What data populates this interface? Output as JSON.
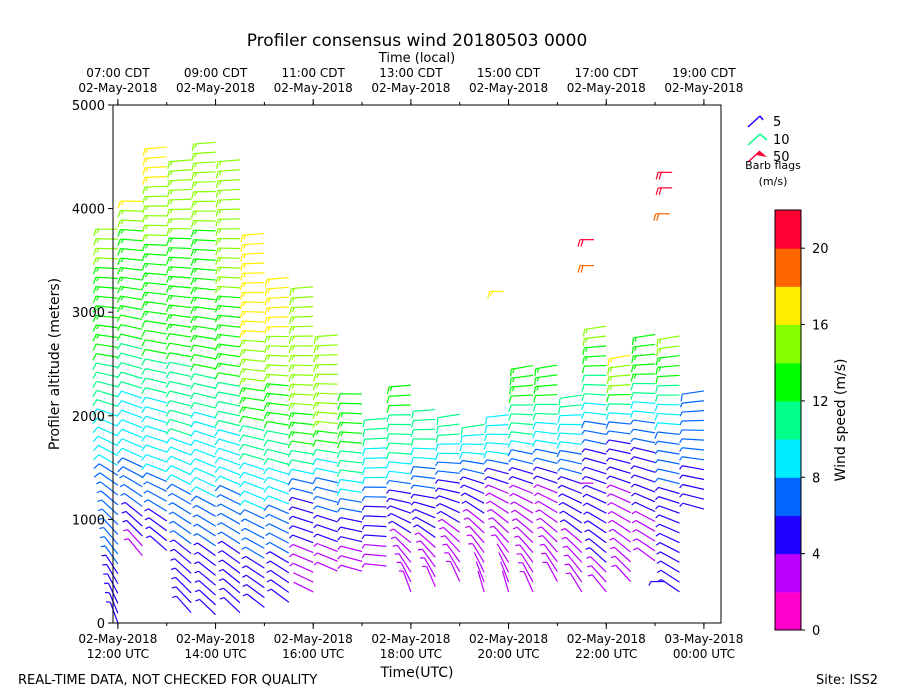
{
  "page": {
    "footer_left": "REAL-TIME DATA, NOT CHECKED FOR QUALITY",
    "footer_right": "Site: ISS2"
  },
  "chart_data": {
    "type": "scatter",
    "title": "Profiler consensus wind 20180503 0000",
    "xlabel": "Time(UTC)",
    "ylabel": "Profiler altitude (meters)",
    "top_axis_label": "Time (local)",
    "ylim": [
      0,
      5000
    ],
    "y_ticks": [
      0,
      1000,
      2000,
      3000,
      4000,
      5000
    ],
    "xlim_hours_utc": [
      11.9,
      24.35
    ],
    "bottom_ticks": [
      {
        "x": 12,
        "line1": "02-May-2018",
        "line2": "12:00 UTC"
      },
      {
        "x": 14,
        "line1": "02-May-2018",
        "line2": "14:00 UTC"
      },
      {
        "x": 16,
        "line1": "02-May-2018",
        "line2": "16:00 UTC"
      },
      {
        "x": 18,
        "line1": "02-May-2018",
        "line2": "18:00 UTC"
      },
      {
        "x": 20,
        "line1": "02-May-2018",
        "line2": "20:00 UTC"
      },
      {
        "x": 22,
        "line1": "02-May-2018",
        "line2": "22:00 UTC"
      },
      {
        "x": 24,
        "line1": "03-May-2018",
        "line2": "00:00 UTC"
      }
    ],
    "top_ticks": [
      {
        "x": 12,
        "line1": "07:00 CDT",
        "line2": "02-May-2018"
      },
      {
        "x": 14,
        "line1": "09:00 CDT",
        "line2": "02-May-2018"
      },
      {
        "x": 16,
        "line1": "11:00 CDT",
        "line2": "02-May-2018"
      },
      {
        "x": 18,
        "line1": "13:00 CDT",
        "line2": "02-May-2018"
      },
      {
        "x": 20,
        "line1": "15:00 CDT",
        "line2": "02-May-2018"
      },
      {
        "x": 22,
        "line1": "17:00 CDT",
        "line2": "02-May-2018"
      },
      {
        "x": 24,
        "line1": "19:00 CDT",
        "line2": "02-May-2018"
      }
    ],
    "minor_ticks_every_hours": 1,
    "barb_legend": {
      "entries": [
        "5",
        "10",
        "50"
      ],
      "caption_line1": "Barb flags",
      "caption_line2": "(m/s)"
    },
    "colorbar": {
      "label": "Wind speed (m/s)",
      "boundaries": [
        0,
        2,
        4,
        6,
        8,
        10,
        12,
        14,
        16,
        18,
        20,
        22
      ],
      "colors": [
        "#ff00cc",
        "#bb00ff",
        "#2200ff",
        "#0066ff",
        "#00eeff",
        "#00ff88",
        "#00ff00",
        "#88ff00",
        "#ffee00",
        "#ff6600",
        "#ff0033"
      ],
      "tick_labels": [
        "0",
        "4",
        "8",
        "12",
        "16",
        "20"
      ]
    },
    "profiles": [
      {
        "t": 12.0,
        "top": 3850,
        "spd": [
          [
            0,
            5
          ],
          [
            500,
            6
          ],
          [
            1000,
            7
          ],
          [
            1500,
            8
          ],
          [
            2000,
            10
          ],
          [
            2500,
            12
          ],
          [
            3000,
            13
          ],
          [
            3500,
            14
          ],
          [
            3850,
            16
          ]
        ],
        "dir": [
          [
            0,
            200
          ],
          [
            1500,
            240
          ],
          [
            2500,
            260
          ],
          [
            3850,
            270
          ]
        ]
      },
      {
        "t": 12.5,
        "top": 4150,
        "spd": [
          [
            650,
            3
          ],
          [
            900,
            5
          ],
          [
            1200,
            7
          ],
          [
            1600,
            8
          ],
          [
            2200,
            10
          ],
          [
            2700,
            12
          ],
          [
            3300,
            13
          ],
          [
            3800,
            14
          ],
          [
            4150,
            17
          ]
        ],
        "dir": [
          [
            0,
            200
          ],
          [
            1500,
            245
          ],
          [
            4150,
            270
          ]
        ]
      },
      {
        "t": 13.0,
        "top": 4600,
        "spd": [
          [
            700,
            4
          ],
          [
            1000,
            6
          ],
          [
            1400,
            8
          ],
          [
            2000,
            9
          ],
          [
            2600,
            12
          ],
          [
            3300,
            13
          ],
          [
            4000,
            15
          ],
          [
            4600,
            17
          ]
        ],
        "dir": [
          [
            0,
            210
          ],
          [
            1500,
            250
          ],
          [
            4600,
            275
          ]
        ]
      },
      {
        "t": 13.5,
        "top": 4500,
        "spd": [
          [
            100,
            5
          ],
          [
            700,
            6
          ],
          [
            1300,
            8
          ],
          [
            1800,
            10
          ],
          [
            2500,
            12
          ],
          [
            3200,
            13
          ],
          [
            3800,
            14
          ],
          [
            4500,
            14
          ]
        ],
        "dir": [
          [
            0,
            220
          ],
          [
            2000,
            255
          ],
          [
            4500,
            275
          ]
        ]
      },
      {
        "t": 14.0,
        "top": 4700,
        "spd": [
          [
            80,
            5
          ],
          [
            700,
            6
          ],
          [
            1200,
            8
          ],
          [
            1800,
            9
          ],
          [
            2400,
            12
          ],
          [
            3000,
            13
          ],
          [
            3800,
            14
          ],
          [
            4700,
            14
          ]
        ],
        "dir": [
          [
            0,
            225
          ],
          [
            2000,
            255
          ],
          [
            4700,
            275
          ]
        ]
      },
      {
        "t": 14.5,
        "top": 4520,
        "spd": [
          [
            100,
            4
          ],
          [
            700,
            6
          ],
          [
            1300,
            8
          ],
          [
            1900,
            10
          ],
          [
            2500,
            13
          ],
          [
            3200,
            14
          ],
          [
            3900,
            14
          ],
          [
            4520,
            14
          ]
        ],
        "dir": [
          [
            0,
            225
          ],
          [
            2000,
            258
          ],
          [
            4520,
            275
          ]
        ]
      },
      {
        "t": 15.0,
        "top": 3800,
        "spd": [
          [
            150,
            5
          ],
          [
            600,
            6
          ],
          [
            1100,
            8
          ],
          [
            1700,
            11
          ],
          [
            2300,
            14
          ],
          [
            2800,
            16
          ],
          [
            3300,
            17
          ],
          [
            3800,
            17
          ]
        ],
        "dir": [
          [
            0,
            230
          ],
          [
            2000,
            260
          ],
          [
            3800,
            275
          ]
        ]
      },
      {
        "t": 15.5,
        "top": 3350,
        "spd": [
          [
            200,
            4
          ],
          [
            600,
            6
          ],
          [
            1100,
            8
          ],
          [
            1700,
            11
          ],
          [
            2300,
            14
          ],
          [
            2800,
            16
          ],
          [
            3350,
            17
          ]
        ],
        "dir": [
          [
            0,
            230
          ],
          [
            2000,
            262
          ],
          [
            3350,
            275
          ]
        ]
      },
      {
        "t": 16.0,
        "top": 3300,
        "spd": [
          [
            300,
            2
          ],
          [
            700,
            4
          ],
          [
            1200,
            6
          ],
          [
            1700,
            12
          ],
          [
            2300,
            15
          ],
          [
            2800,
            16
          ],
          [
            3300,
            14
          ]
        ],
        "dir": [
          [
            0,
            240
          ],
          [
            2000,
            265
          ],
          [
            3300,
            275
          ]
        ]
      },
      {
        "t": 16.5,
        "top": 2850,
        "spd": [
          [
            500,
            3
          ],
          [
            900,
            5
          ],
          [
            1400,
            8
          ],
          [
            1900,
            14
          ],
          [
            2400,
            15
          ],
          [
            2850,
            14
          ]
        ],
        "dir": [
          [
            0,
            240
          ],
          [
            2000,
            265
          ],
          [
            2850,
            275
          ]
        ]
      },
      {
        "t": 17.0,
        "top": 2300,
        "spd": [
          [
            500,
            3
          ],
          [
            900,
            5
          ],
          [
            1400,
            10
          ],
          [
            1900,
            13
          ],
          [
            2300,
            12
          ]
        ],
        "dir": [
          [
            0,
            250
          ],
          [
            2300,
            270
          ]
        ]
      },
      {
        "t": 17.5,
        "top": 2050,
        "spd": [
          [
            550,
            3
          ],
          [
            1000,
            5
          ],
          [
            1400,
            8
          ],
          [
            2050,
            12
          ]
        ],
        "dir": [
          [
            0,
            260
          ],
          [
            2050,
            275
          ]
        ]
      },
      {
        "t": 18.0,
        "top": 2350,
        "spd": [
          [
            300,
            3
          ],
          [
            800,
            4
          ],
          [
            1200,
            5
          ],
          [
            1600,
            10
          ],
          [
            2350,
            13
          ]
        ],
        "dir": [
          [
            0,
            180
          ],
          [
            1200,
            260
          ],
          [
            2350,
            275
          ]
        ]
      },
      {
        "t": 18.5,
        "top": 2100,
        "spd": [
          [
            350,
            3
          ],
          [
            800,
            4
          ],
          [
            1200,
            5
          ],
          [
            1700,
            10
          ],
          [
            2100,
            12
          ]
        ],
        "dir": [
          [
            0,
            180
          ],
          [
            1200,
            260
          ],
          [
            2100,
            275
          ]
        ]
      },
      {
        "t": 19.0,
        "top": 2050,
        "spd": [
          [
            400,
            3
          ],
          [
            900,
            4
          ],
          [
            1300,
            5
          ],
          [
            1800,
            10
          ],
          [
            2050,
            12
          ]
        ],
        "dir": [
          [
            0,
            180
          ],
          [
            1300,
            260
          ],
          [
            2050,
            280
          ]
        ]
      },
      {
        "t": 19.5,
        "top": 1950,
        "spd": [
          [
            300,
            2
          ],
          [
            800,
            3
          ],
          [
            1300,
            5
          ],
          [
            1700,
            9
          ],
          [
            1950,
            11
          ]
        ],
        "dir": [
          [
            0,
            180
          ],
          [
            1300,
            250
          ],
          [
            1950,
            280
          ]
        ]
      },
      {
        "t": 20.0,
        "top": 2100,
        "spd": [
          [
            300,
            2
          ],
          [
            900,
            3
          ],
          [
            1300,
            4
          ],
          [
            1700,
            9
          ],
          [
            2100,
            10
          ]
        ],
        "dir": [
          [
            0,
            180
          ],
          [
            1300,
            250
          ],
          [
            2100,
            280
          ]
        ]
      },
      {
        "t": 20.5,
        "top": 2500,
        "spd": [
          [
            300,
            3
          ],
          [
            900,
            3
          ],
          [
            1300,
            4
          ],
          [
            1800,
            10
          ],
          [
            2300,
            13
          ],
          [
            2500,
            14
          ]
        ],
        "dir": [
          [
            0,
            190
          ],
          [
            1300,
            250
          ],
          [
            2500,
            280
          ]
        ]
      },
      {
        "t": 21.0,
        "top": 2500,
        "spd": [
          [
            400,
            3
          ],
          [
            900,
            3
          ],
          [
            1300,
            4
          ],
          [
            1800,
            9
          ],
          [
            2200,
            12
          ],
          [
            2500,
            14
          ]
        ],
        "dir": [
          [
            0,
            190
          ],
          [
            1300,
            250
          ],
          [
            2500,
            280
          ]
        ]
      },
      {
        "t": 21.5,
        "top": 2250,
        "spd": [
          [
            300,
            3
          ],
          [
            800,
            4
          ],
          [
            1300,
            5
          ],
          [
            1800,
            9
          ],
          [
            2250,
            11
          ]
        ],
        "dir": [
          [
            0,
            200
          ],
          [
            1300,
            250
          ],
          [
            2250,
            280
          ]
        ]
      },
      {
        "t": 22.0,
        "top": 2950,
        "spd": [
          [
            300,
            3
          ],
          [
            700,
            5
          ],
          [
            1300,
            4
          ],
          [
            1800,
            7
          ],
          [
            2400,
            12
          ],
          [
            2950,
            15
          ]
        ],
        "dir": [
          [
            0,
            210
          ],
          [
            1300,
            250
          ],
          [
            2950,
            280
          ]
        ]
      },
      {
        "t": 22.5,
        "top": 2600,
        "spd": [
          [
            400,
            3
          ],
          [
            800,
            3
          ],
          [
            1300,
            4
          ],
          [
            1800,
            6
          ],
          [
            2300,
            14
          ],
          [
            2600,
            17
          ]
        ],
        "dir": [
          [
            0,
            210
          ],
          [
            1300,
            250
          ],
          [
            2600,
            280
          ]
        ]
      },
      {
        "t": 23.0,
        "top": 2850,
        "spd": [
          [
            600,
            3
          ],
          [
            1000,
            4
          ],
          [
            1400,
            5
          ],
          [
            1900,
            7
          ],
          [
            2400,
            13
          ],
          [
            2850,
            14
          ]
        ],
        "dir": [
          [
            0,
            220
          ],
          [
            1300,
            250
          ],
          [
            2850,
            280
          ]
        ]
      },
      {
        "t": 23.5,
        "top": 2800,
        "spd": [
          [
            300,
            4
          ],
          [
            800,
            4
          ],
          [
            1300,
            6
          ],
          [
            1900,
            8
          ],
          [
            2500,
            13
          ],
          [
            2800,
            15
          ]
        ],
        "dir": [
          [
            0,
            230
          ],
          [
            1300,
            255
          ],
          [
            2800,
            280
          ]
        ]
      },
      {
        "t": 24.0,
        "top": 2300,
        "spd": [
          [
            1100,
            5
          ],
          [
            1500,
            6
          ],
          [
            2000,
            7
          ],
          [
            2300,
            8
          ]
        ],
        "dir": [
          [
            0,
            240
          ],
          [
            1500,
            260
          ],
          [
            2300,
            280
          ]
        ]
      }
    ],
    "isolated_barbs": [
      {
        "t": 21.75,
        "alt": 3700,
        "spd": 21,
        "dir": 270
      },
      {
        "t": 21.75,
        "alt": 3450,
        "spd": 19,
        "dir": 270
      },
      {
        "t": 23.35,
        "alt": 4350,
        "spd": 21,
        "dir": 270
      },
      {
        "t": 23.35,
        "alt": 4200,
        "spd": 21,
        "dir": 270
      },
      {
        "t": 23.3,
        "alt": 3950,
        "spd": 18,
        "dir": 270
      },
      {
        "t": 19.9,
        "alt": 3200,
        "spd": 16,
        "dir": 270
      },
      {
        "t": 23.2,
        "alt": 400,
        "spd": 5,
        "dir": 270
      },
      {
        "t": 21.45,
        "alt": 1350,
        "spd": 2,
        "dir": 90
      }
    ]
  }
}
